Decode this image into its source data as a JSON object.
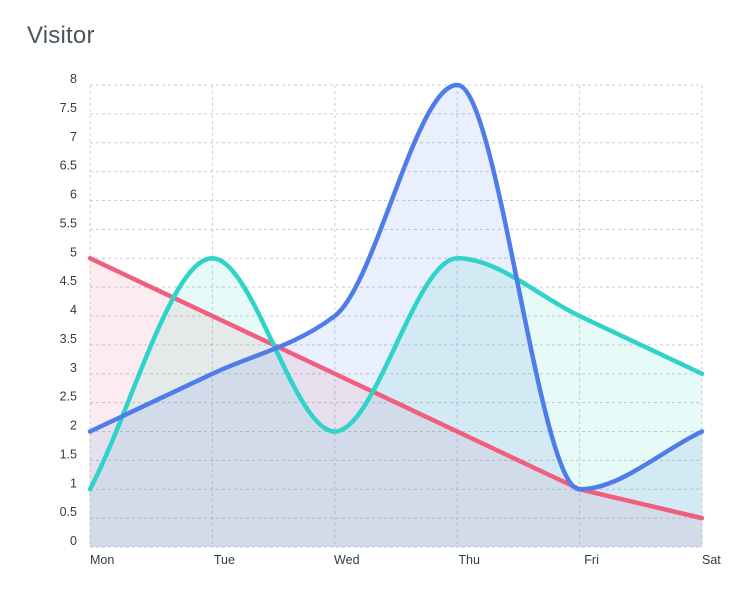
{
  "card": {
    "title": "Visitor"
  },
  "chart_data": {
    "type": "area",
    "categories": [
      "Mon",
      "Tue",
      "Wed",
      "Thu",
      "Fri",
      "Sat"
    ],
    "ylim": [
      0,
      8
    ],
    "yticks": [
      0,
      0.5,
      1,
      1.5,
      2,
      2.5,
      3,
      3.5,
      4,
      4.5,
      5,
      5.5,
      6,
      6.5,
      7,
      7.5,
      8
    ],
    "grid": true,
    "series": [
      {
        "values": [
          5,
          4,
          3,
          2,
          1,
          0.5
        ],
        "color": "#f0607e",
        "fill": "#f0607e",
        "fillOpacity": 0.12,
        "smooth": false
      },
      {
        "values": [
          1,
          5,
          2,
          5,
          4,
          3
        ],
        "color": "#2fd3c9",
        "fill": "#2fd3c9",
        "fillOpacity": 0.12,
        "smooth": true
      },
      {
        "values": [
          2,
          3,
          4,
          8,
          1,
          2
        ],
        "color": "#4e7de9",
        "fill": "#4e7de9",
        "fillOpacity": 0.12,
        "smooth": true
      }
    ]
  }
}
